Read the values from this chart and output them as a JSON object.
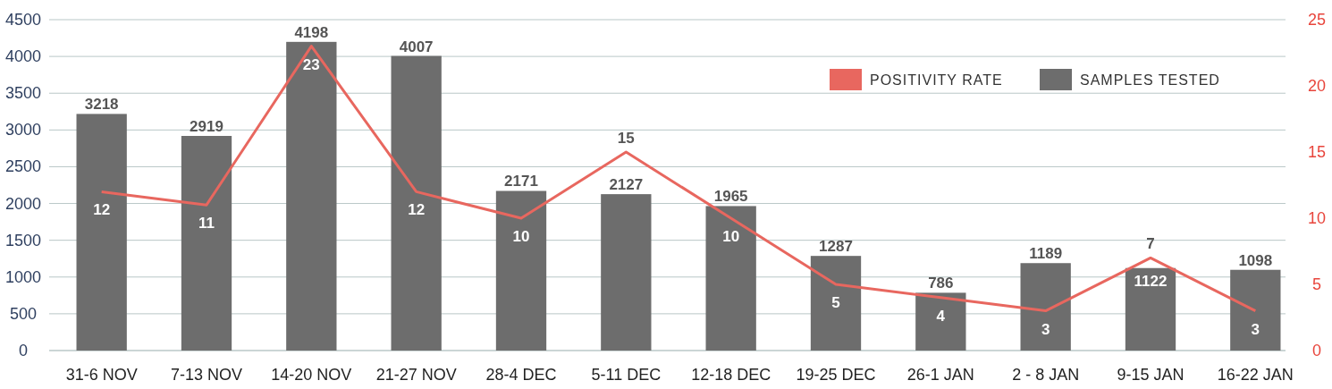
{
  "chart_data": {
    "type": "bar",
    "categories": [
      "31-6 NOV",
      "7-13 NOV",
      "14-20 NOV",
      "21-27 NOV",
      "28-4 DEC",
      "5-11 DEC",
      "12-18 DEC",
      "19-25 DEC",
      "26-1 JAN",
      "2 - 8 JAN",
      "9-15 JAN",
      "16-22 JAN"
    ],
    "series": [
      {
        "name": "SAMPLES TESTED",
        "color": "#6d6d6d",
        "values": [
          3218,
          2919,
          4198,
          4007,
          2171,
          2127,
          1965,
          1287,
          786,
          1189,
          1122,
          1098
        ]
      },
      {
        "name": "POSITIVITY RATE",
        "type": "line",
        "axis": "y2",
        "color": "#e8675f",
        "values": [
          12,
          11,
          23,
          12,
          10,
          15,
          10,
          5,
          4,
          3,
          7,
          3
        ]
      }
    ],
    "ylim": [
      0,
      4500
    ],
    "yticks": [
      0,
      500,
      1000,
      1500,
      2000,
      2500,
      3000,
      3500,
      4000,
      4500
    ],
    "y2lim": [
      0,
      25
    ],
    "y2ticks": [
      0,
      5,
      10,
      15,
      20,
      25
    ],
    "grid": "y",
    "legend": "top right",
    "data_labels": true
  }
}
